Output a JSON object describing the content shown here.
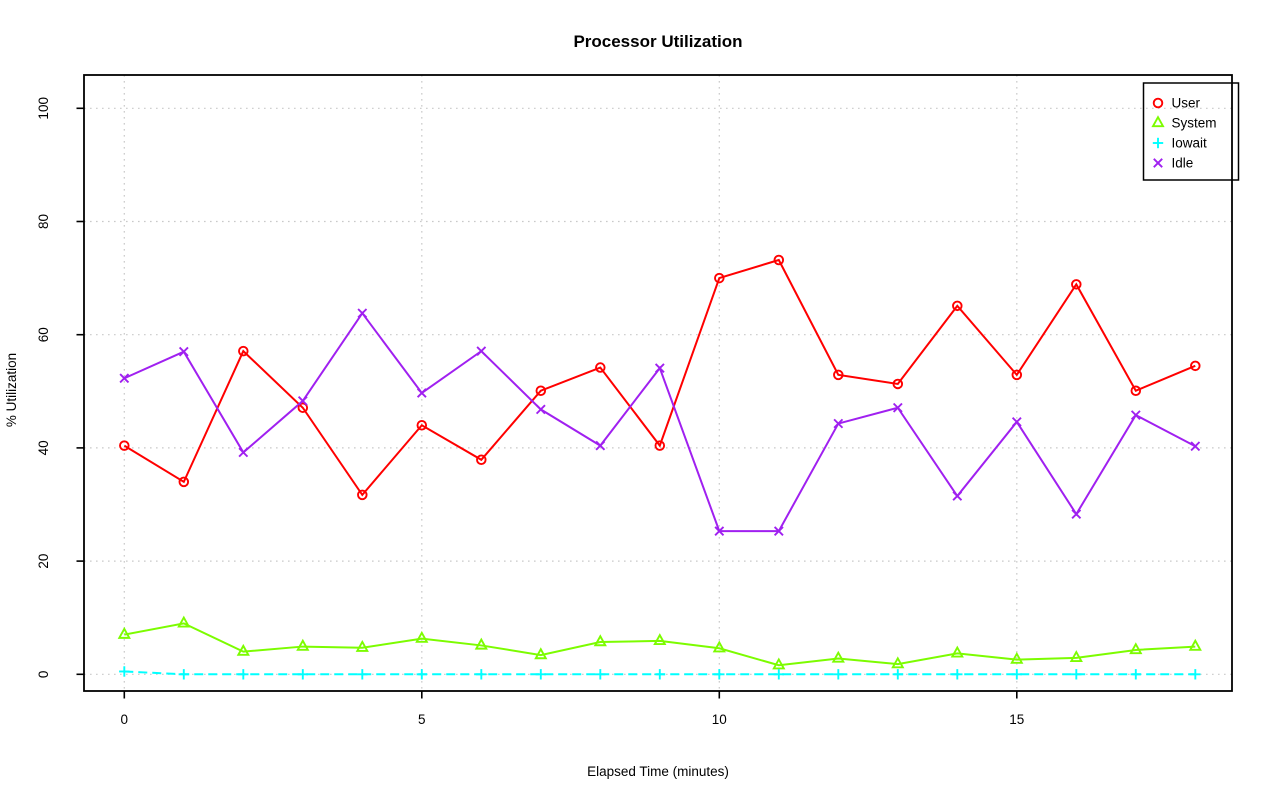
{
  "chart_data": {
    "type": "line",
    "title": "Processor Utilization",
    "xlabel": "Elapsed Time (minutes)",
    "ylabel": "% Utilization",
    "x": [
      0,
      1,
      2,
      3,
      4,
      5,
      6,
      7,
      8,
      9,
      10,
      11,
      12,
      13,
      14,
      15,
      16,
      17,
      18
    ],
    "x_ticks": [
      0,
      5,
      10,
      15
    ],
    "y_ticks": [
      0,
      20,
      40,
      60,
      80,
      100
    ],
    "xlim": [
      -0.68,
      18.62
    ],
    "ylim": [
      -3.0,
      105.9
    ],
    "grid": "dotted",
    "grid_color": "#c9c9c9",
    "legend_position": "top-right",
    "series": [
      {
        "name": "User",
        "color": "#ff0000",
        "marker": "circle",
        "line": "solid",
        "values": [
          40.4,
          34.0,
          57.1,
          47.1,
          31.7,
          44.0,
          37.9,
          50.1,
          54.2,
          40.4,
          70.0,
          73.2,
          52.9,
          51.3,
          65.1,
          52.9,
          68.9,
          50.1,
          54.5
        ]
      },
      {
        "name": "System",
        "color": "#7cfc00",
        "marker": "triangle",
        "line": "solid",
        "values": [
          7.0,
          9.0,
          4.0,
          4.9,
          4.7,
          6.3,
          5.1,
          3.4,
          5.7,
          5.9,
          4.6,
          1.6,
          2.8,
          1.8,
          3.7,
          2.6,
          2.9,
          4.3,
          4.9
        ]
      },
      {
        "name": "Iowait",
        "color": "#00ffff",
        "marker": "plus",
        "line": "dashed",
        "values": [
          0.5,
          0,
          0,
          0,
          0,
          0,
          0,
          0,
          0,
          0,
          0,
          0,
          0,
          0,
          0,
          0,
          0,
          0,
          0
        ]
      },
      {
        "name": "Idle",
        "color": "#a020f0",
        "marker": "x",
        "line": "solid",
        "values": [
          52.3,
          57.0,
          39.2,
          48.3,
          63.8,
          49.7,
          57.1,
          46.8,
          40.4,
          54.1,
          25.3,
          25.3,
          44.3,
          47.1,
          31.5,
          44.6,
          28.3,
          45.8,
          40.3
        ]
      }
    ]
  },
  "labels": {
    "title": "Processor Utilization",
    "xlabel": "Elapsed Time (minutes)",
    "ylabel": "% Utilization"
  }
}
